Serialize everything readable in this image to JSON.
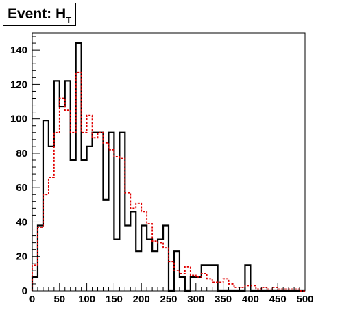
{
  "chart_data": {
    "type": "histogram",
    "title": "Event: HT",
    "title_main": "Event: H",
    "title_sub": "T",
    "xlabel": "",
    "ylabel": "",
    "xlim": [
      0,
      500
    ],
    "ylim": [
      0,
      150
    ],
    "bin_width": 10,
    "x_ticks": [
      0,
      50,
      100,
      150,
      200,
      250,
      300,
      350,
      400,
      450,
      500
    ],
    "y_ticks": [
      0,
      20,
      40,
      60,
      80,
      100,
      120,
      140
    ],
    "grid": false,
    "legend": "none",
    "series": [
      {
        "style": "solid-black",
        "color": "#000000",
        "bin_edges_start": [
          0,
          10,
          20,
          30,
          40,
          50,
          60,
          70,
          80,
          90,
          100,
          110,
          120,
          130,
          140,
          150,
          160,
          170,
          180,
          190,
          200,
          210,
          220,
          230,
          240,
          250,
          260,
          270,
          280,
          290,
          300,
          310,
          320,
          330,
          340,
          350,
          360,
          370,
          380,
          390,
          400,
          410,
          420,
          430,
          440,
          450,
          460,
          470,
          480,
          490
        ],
        "values": [
          8,
          38,
          99,
          84,
          122,
          107,
          122,
          76,
          144,
          76,
          84,
          92,
          92,
          53,
          92,
          30,
          92,
          38,
          46,
          23,
          38,
          30,
          23,
          30,
          38,
          0,
          23,
          8,
          0,
          8,
          8,
          15,
          15,
          15,
          0,
          0,
          0,
          0,
          0,
          15,
          0,
          0,
          0,
          0,
          0,
          0,
          0,
          0,
          0,
          0
        ]
      },
      {
        "style": "dashed-red",
        "color": "#e00000",
        "bin_edges_start": [
          0,
          10,
          20,
          30,
          40,
          50,
          60,
          70,
          80,
          90,
          100,
          110,
          120,
          130,
          140,
          150,
          160,
          170,
          180,
          190,
          200,
          210,
          220,
          230,
          240,
          250,
          260,
          270,
          280,
          290,
          300,
          310,
          320,
          330,
          340,
          350,
          360,
          370,
          380,
          390,
          400,
          410,
          420,
          430,
          440,
          450,
          460,
          470,
          480,
          490
        ],
        "values": [
          15,
          37,
          56,
          66,
          92,
          112,
          105,
          92,
          127,
          92,
          102,
          89,
          92,
          86,
          82,
          78,
          77,
          57,
          48,
          51,
          46,
          39,
          29,
          28,
          25,
          17,
          12,
          10,
          14,
          9,
          8,
          10,
          7,
          5,
          5,
          7,
          4,
          2,
          2,
          3,
          3,
          1,
          2,
          1,
          2,
          1,
          1,
          1,
          1,
          0
        ]
      }
    ]
  }
}
